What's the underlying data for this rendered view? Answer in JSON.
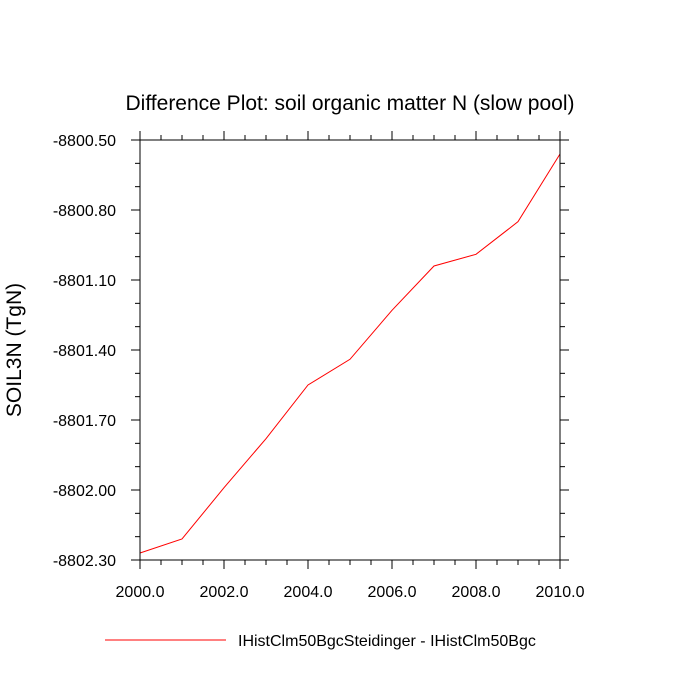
{
  "chart_data": {
    "type": "line",
    "title": "Difference Plot: soil organic matter N (slow pool)",
    "xlabel": "",
    "ylabel": "SOIL3N  (TgN)",
    "xlim": [
      2000,
      2010
    ],
    "ylim": [
      -8802.3,
      -8800.5
    ],
    "x_ticks": [
      2000,
      2002,
      2004,
      2006,
      2008,
      2010
    ],
    "x_tick_labels": [
      "2000.0",
      "2002.0",
      "2004.0",
      "2006.0",
      "2008.0",
      "2010.0"
    ],
    "y_ticks": [
      -8800.5,
      -8800.8,
      -8801.1,
      -8801.4,
      -8801.7,
      -8802.0,
      -8802.3
    ],
    "y_tick_labels": [
      "-8800.50",
      "-8800.80",
      "-8801.10",
      "-8801.40",
      "-8801.70",
      "-8802.00",
      "-8802.30"
    ],
    "grid": false,
    "legend_position": "bottom",
    "series": [
      {
        "name": "IHistClm50BgcSteidinger - IHistClm50Bgc",
        "color": "#ff0000",
        "x": [
          2000,
          2001,
          2002,
          2003,
          2004,
          2005,
          2006,
          2007,
          2008,
          2009,
          2010
        ],
        "y": [
          -8802.27,
          -8802.21,
          -8801.99,
          -8801.78,
          -8801.55,
          -8801.44,
          -8801.23,
          -8801.04,
          -8800.99,
          -8800.85,
          -8800.56
        ]
      }
    ]
  }
}
